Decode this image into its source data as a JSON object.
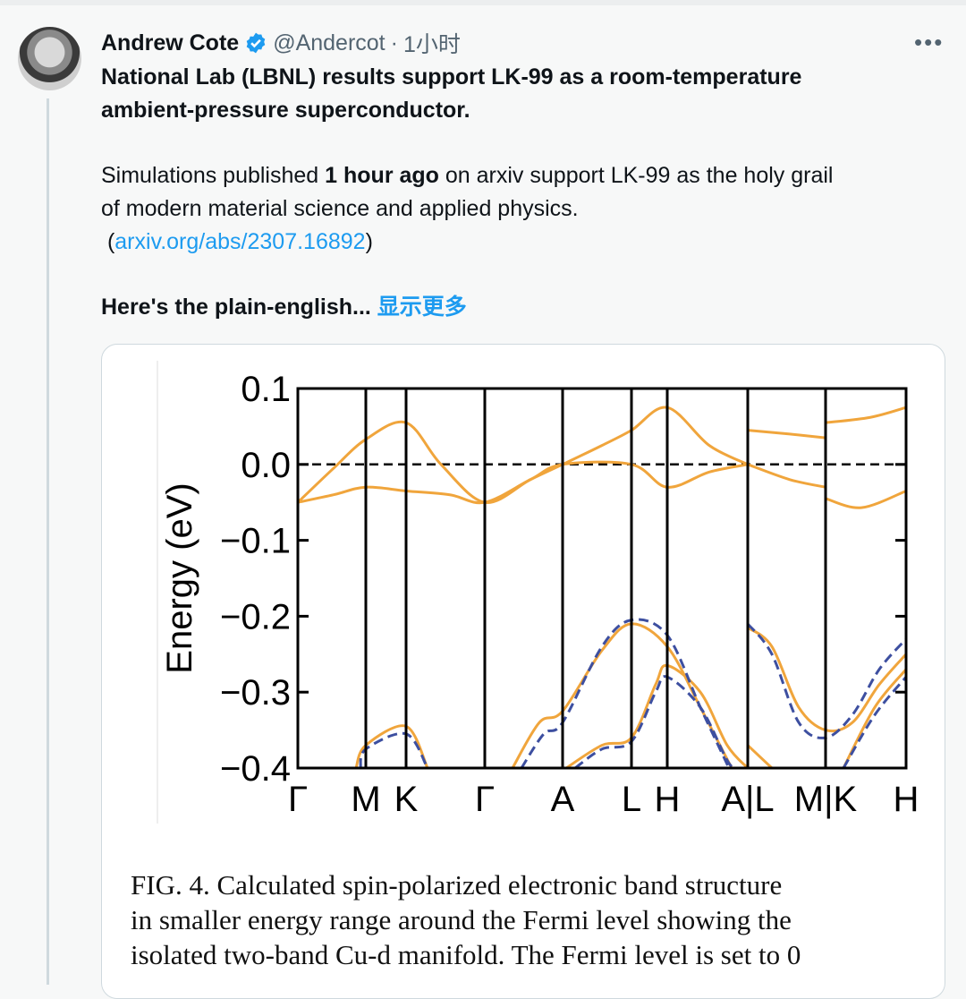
{
  "tweet": {
    "author_name": "Andrew Cote",
    "handle": "@Andercot",
    "separator": "·",
    "time": "1小时",
    "verified": true,
    "headline_line1": "National Lab (LBNL) results support LK-99 as a room-temperature",
    "headline_line2": "ambient-pressure superconductor.",
    "body_pre": "Simulations published ",
    "body_bold": "1 hour ago",
    "body_post": " on arxiv support LK-99 as the holy grail",
    "body_line2": "of modern material science and applied physics.",
    "link_open": " (",
    "link_text": "arxiv.org/abs/2307.16892",
    "link_close": ")",
    "teaser": "Here's the plain-english...",
    "show_more": "显示更多",
    "more_icon": "more-horizontal-icon",
    "accent": "#1d9bf0"
  },
  "figure": {
    "caption_lines": [
      "FIG. 4.  Calculated spin-polarized electronic band structure",
      "in smaller energy range around the Fermi level showing the",
      "isolated two-band Cu-d manifold.  The Fermi level is set to 0"
    ]
  },
  "chart_data": {
    "type": "line",
    "ylabel": "Energy (eV)",
    "ylim": [
      -0.4,
      0.1
    ],
    "yticks": [
      0.1,
      0.0,
      -0.1,
      -0.2,
      -0.3,
      -0.4
    ],
    "ytick_labels": [
      "0.1",
      "0.0",
      "−0.1",
      "−0.2",
      "−0.3",
      "−0.4"
    ],
    "xlim": [
      0,
      6.8
    ],
    "kpoints": [
      {
        "x": 0,
        "label": "Γ"
      },
      {
        "x": 0.76,
        "label": "M"
      },
      {
        "x": 1.21,
        "label": "K"
      },
      {
        "x": 2.09,
        "label": "Γ"
      },
      {
        "x": 2.96,
        "label": "A"
      },
      {
        "x": 3.73,
        "label": "L"
      },
      {
        "x": 4.13,
        "label": "H"
      },
      {
        "x": 5.03,
        "label": "A|L"
      },
      {
        "x": 5.9,
        "label": "M|K"
      },
      {
        "x": 6.8,
        "label": "H"
      }
    ],
    "fermi_level": 0.0,
    "colors": {
      "spin_up": "#f0a53c",
      "spin_down": "#3d4fa0",
      "fermi": "#000000"
    },
    "series": [
      {
        "name": "up-1a",
        "spin": "up",
        "points": [
          [
            0,
            -0.05
          ],
          [
            0.4,
            -0.005
          ],
          [
            0.76,
            0.033
          ],
          [
            1.21,
            0.055
          ],
          [
            1.6,
            0.0
          ],
          [
            2.09,
            -0.05
          ],
          [
            2.6,
            -0.02
          ],
          [
            2.96,
            0.0
          ],
          [
            3.4,
            0.025
          ],
          [
            3.73,
            0.045
          ],
          [
            4.13,
            0.075
          ],
          [
            4.6,
            0.025
          ],
          [
            5.03,
            0.0
          ]
        ]
      },
      {
        "name": "up-2a",
        "spin": "up",
        "points": [
          [
            0,
            -0.05
          ],
          [
            0.4,
            -0.04
          ],
          [
            0.76,
            -0.03
          ],
          [
            1.21,
            -0.035
          ],
          [
            1.7,
            -0.04
          ],
          [
            2.09,
            -0.05
          ],
          [
            2.6,
            -0.02
          ],
          [
            2.96,
            0.0
          ],
          [
            3.73,
            0.0
          ],
          [
            4.13,
            -0.03
          ],
          [
            4.6,
            -0.01
          ],
          [
            5.03,
            0.0
          ]
        ]
      },
      {
        "name": "up-1b",
        "spin": "up",
        "points": [
          [
            5.03,
            0.045
          ],
          [
            5.5,
            0.04
          ],
          [
            5.9,
            0.035
          ]
        ]
      },
      {
        "name": "up-2b",
        "spin": "up",
        "points": [
          [
            5.03,
            0.0
          ],
          [
            5.5,
            -0.02
          ],
          [
            5.9,
            -0.03
          ]
        ]
      },
      {
        "name": "up-1c",
        "spin": "up",
        "points": [
          [
            5.9,
            0.055
          ],
          [
            6.4,
            0.062
          ],
          [
            6.8,
            0.075
          ]
        ]
      },
      {
        "name": "up-2c",
        "spin": "up",
        "points": [
          [
            5.9,
            -0.045
          ],
          [
            6.3,
            -0.057
          ],
          [
            6.8,
            -0.035
          ]
        ]
      },
      {
        "name": "up-3a",
        "spin": "up",
        "points": [
          [
            0.65,
            -0.4
          ],
          [
            0.76,
            -0.37
          ],
          [
            1.21,
            -0.345
          ],
          [
            1.45,
            -0.4
          ]
        ]
      },
      {
        "name": "up-3b",
        "spin": "up",
        "points": [
          [
            2.4,
            -0.4
          ],
          [
            2.7,
            -0.34
          ],
          [
            2.96,
            -0.325
          ],
          [
            3.4,
            -0.245
          ],
          [
            3.73,
            -0.21
          ],
          [
            4.13,
            -0.24
          ],
          [
            4.5,
            -0.32
          ],
          [
            4.85,
            -0.4
          ]
        ]
      },
      {
        "name": "up-4b",
        "spin": "up",
        "points": [
          [
            3.0,
            -0.4
          ],
          [
            3.4,
            -0.37
          ],
          [
            3.73,
            -0.36
          ],
          [
            4.0,
            -0.29
          ],
          [
            4.13,
            -0.265
          ],
          [
            4.5,
            -0.3
          ],
          [
            4.8,
            -0.37
          ],
          [
            5.03,
            -0.4
          ]
        ]
      },
      {
        "name": "up-3c",
        "spin": "up",
        "points": [
          [
            5.03,
            -0.215
          ],
          [
            5.3,
            -0.24
          ],
          [
            5.6,
            -0.32
          ],
          [
            5.9,
            -0.35
          ],
          [
            6.2,
            -0.34
          ],
          [
            6.5,
            -0.29
          ],
          [
            6.8,
            -0.25
          ]
        ]
      },
      {
        "name": "up-4c",
        "spin": "up",
        "points": [
          [
            5.03,
            -0.37
          ],
          [
            5.3,
            -0.4
          ]
        ]
      },
      {
        "name": "up-5c",
        "spin": "up",
        "points": [
          [
            6.1,
            -0.4
          ],
          [
            6.45,
            -0.32
          ],
          [
            6.8,
            -0.27
          ]
        ]
      },
      {
        "name": "dn-3a",
        "spin": "down",
        "points": [
          [
            0.7,
            -0.4
          ],
          [
            0.76,
            -0.375
          ],
          [
            1.21,
            -0.355
          ],
          [
            1.45,
            -0.4
          ]
        ]
      },
      {
        "name": "dn-3b",
        "spin": "down",
        "points": [
          [
            2.5,
            -0.4
          ],
          [
            2.75,
            -0.355
          ],
          [
            2.96,
            -0.34
          ],
          [
            3.4,
            -0.24
          ],
          [
            3.73,
            -0.205
          ],
          [
            4.13,
            -0.225
          ],
          [
            4.5,
            -0.32
          ],
          [
            4.82,
            -0.4
          ]
        ]
      },
      {
        "name": "dn-4b",
        "spin": "down",
        "points": [
          [
            3.1,
            -0.4
          ],
          [
            3.4,
            -0.375
          ],
          [
            3.73,
            -0.365
          ],
          [
            4.0,
            -0.3
          ],
          [
            4.13,
            -0.28
          ],
          [
            4.5,
            -0.32
          ],
          [
            4.8,
            -0.39
          ],
          [
            4.9,
            -0.4
          ]
        ]
      },
      {
        "name": "dn-3c",
        "spin": "down",
        "points": [
          [
            5.03,
            -0.21
          ],
          [
            5.3,
            -0.25
          ],
          [
            5.6,
            -0.34
          ],
          [
            5.9,
            -0.36
          ],
          [
            6.2,
            -0.33
          ],
          [
            6.5,
            -0.27
          ],
          [
            6.8,
            -0.23
          ]
        ]
      },
      {
        "name": "dn-5c",
        "spin": "down",
        "points": [
          [
            6.1,
            -0.4
          ],
          [
            6.45,
            -0.33
          ],
          [
            6.8,
            -0.28
          ]
        ]
      }
    ]
  }
}
